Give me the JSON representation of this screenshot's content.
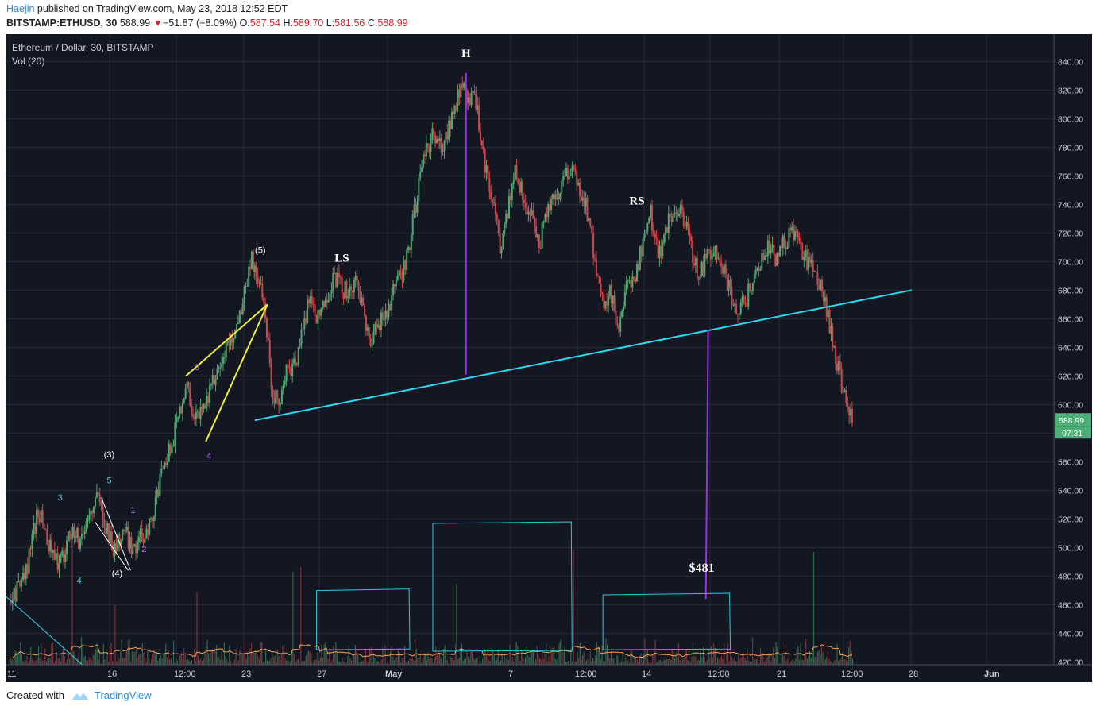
{
  "header": {
    "author": "Haejin",
    "published": " published on TradingView.com, May 23, 2018 12:52 EDT"
  },
  "quote": {
    "symbol": "BITSTAMP:ETHUSD, 30",
    "last": "588.99",
    "change": "−51.87 (−8.09%)",
    "o_label": "O:",
    "o": "587.54",
    "h_label": "H:",
    "h": "589.70",
    "l_label": "L:",
    "l": "581.56",
    "c_label": "C:",
    "c": "588.99"
  },
  "legend": {
    "title": "Ethereum / Dollar, 30, BITSTAMP",
    "volume": "Vol (20)"
  },
  "footer": {
    "created_with": "Created with",
    "brand": "TradingView",
    "logo_icon": "tradingview-cloud-icon"
  },
  "colors": {
    "background": "#131722",
    "grid": "#252a37",
    "up": "#4fa86f",
    "down": "#c9494f",
    "neckline": "#2cd9ee",
    "wedge": "#f3ee30",
    "target_line": "#9b30e8",
    "box": "#2cc6d8",
    "price_badge": "#4caf75"
  },
  "chart_data": {
    "type": "candlestick",
    "symbol": "ETHUSD",
    "interval": "30",
    "y_axis": {
      "range": [
        418,
        848
      ],
      "ticks": [
        420,
        440,
        460,
        480,
        500,
        520,
        540,
        560,
        580,
        600,
        620,
        640,
        660,
        680,
        700,
        720,
        740,
        760,
        780,
        800,
        820,
        840
      ]
    },
    "x_axis": {
      "ticks": [
        "11",
        "16",
        "12:00",
        "23",
        "27",
        "May",
        "7",
        "12:00",
        "14",
        "12:00",
        "21",
        "12:00",
        "28",
        "Jun"
      ]
    },
    "last_price": "588.99",
    "countdown": "07:31",
    "price_path": [
      {
        "t": 0,
        "p": 462
      },
      {
        "t": 2,
        "p": 480
      },
      {
        "t": 3.6,
        "p": 527
      },
      {
        "t": 5,
        "p": 503
      },
      {
        "t": 6.4,
        "p": 486
      },
      {
        "t": 7.6,
        "p": 512
      },
      {
        "t": 9,
        "p": 505
      },
      {
        "t": 10,
        "p": 522
      },
      {
        "t": 11.2,
        "p": 535
      },
      {
        "t": 12.2,
        "p": 516
      },
      {
        "t": 13.2,
        "p": 498
      },
      {
        "t": 14.4,
        "p": 512
      },
      {
        "t": 15.6,
        "p": 500
      },
      {
        "t": 17,
        "p": 510
      },
      {
        "t": 18,
        "p": 520
      },
      {
        "t": 19,
        "p": 545
      },
      {
        "t": 20.5,
        "p": 572
      },
      {
        "t": 21.5,
        "p": 598
      },
      {
        "t": 22.5,
        "p": 613
      },
      {
        "t": 23.5,
        "p": 588
      },
      {
        "t": 24.5,
        "p": 600
      },
      {
        "t": 25.5,
        "p": 612
      },
      {
        "t": 26.5,
        "p": 628
      },
      {
        "t": 27.5,
        "p": 640
      },
      {
        "t": 28.5,
        "p": 652
      },
      {
        "t": 29.5,
        "p": 672
      },
      {
        "t": 30.5,
        "p": 703
      },
      {
        "t": 31.5,
        "p": 688
      },
      {
        "t": 32.5,
        "p": 655
      },
      {
        "t": 33.2,
        "p": 610
      },
      {
        "t": 34,
        "p": 602
      },
      {
        "t": 35,
        "p": 622
      },
      {
        "t": 36,
        "p": 628
      },
      {
        "t": 37,
        "p": 650
      },
      {
        "t": 38,
        "p": 678
      },
      {
        "t": 39,
        "p": 660
      },
      {
        "t": 40,
        "p": 675
      },
      {
        "t": 41,
        "p": 690
      },
      {
        "t": 42,
        "p": 682
      },
      {
        "t": 43,
        "p": 678
      },
      {
        "t": 44,
        "p": 685
      },
      {
        "t": 45,
        "p": 660
      },
      {
        "t": 45.6,
        "p": 640
      },
      {
        "t": 46.5,
        "p": 655
      },
      {
        "t": 47.5,
        "p": 665
      },
      {
        "t": 48.5,
        "p": 678
      },
      {
        "t": 49.5,
        "p": 690
      },
      {
        "t": 50.5,
        "p": 710
      },
      {
        "t": 51.5,
        "p": 745
      },
      {
        "t": 52.5,
        "p": 775
      },
      {
        "t": 53.5,
        "p": 790
      },
      {
        "t": 54.5,
        "p": 778
      },
      {
        "t": 55.5,
        "p": 795
      },
      {
        "t": 56.5,
        "p": 812
      },
      {
        "t": 57.2,
        "p": 826
      },
      {
        "t": 57.8,
        "p": 808
      },
      {
        "t": 58.6,
        "p": 825
      },
      {
        "t": 59.4,
        "p": 795
      },
      {
        "t": 60.2,
        "p": 765
      },
      {
        "t": 61.2,
        "p": 742
      },
      {
        "t": 62,
        "p": 705
      },
      {
        "t": 63,
        "p": 735
      },
      {
        "t": 64,
        "p": 765
      },
      {
        "t": 65,
        "p": 742
      },
      {
        "t": 66,
        "p": 730
      },
      {
        "t": 67,
        "p": 712
      },
      {
        "t": 68,
        "p": 740
      },
      {
        "t": 69,
        "p": 745
      },
      {
        "t": 70,
        "p": 758
      },
      {
        "t": 71,
        "p": 762
      },
      {
        "t": 72,
        "p": 752
      },
      {
        "t": 73,
        "p": 735
      },
      {
        "t": 74,
        "p": 700
      },
      {
        "t": 75,
        "p": 670
      },
      {
        "t": 76,
        "p": 678
      },
      {
        "t": 77,
        "p": 648
      },
      {
        "t": 78,
        "p": 680
      },
      {
        "t": 79,
        "p": 690
      },
      {
        "t": 80,
        "p": 712
      },
      {
        "t": 81,
        "p": 735
      },
      {
        "t": 82,
        "p": 705
      },
      {
        "t": 83,
        "p": 722
      },
      {
        "t": 84,
        "p": 738
      },
      {
        "t": 85,
        "p": 732
      },
      {
        "t": 86,
        "p": 712
      },
      {
        "t": 87,
        "p": 690
      },
      {
        "t": 88,
        "p": 700
      },
      {
        "t": 89,
        "p": 712
      },
      {
        "t": 90,
        "p": 698
      },
      {
        "t": 91,
        "p": 682
      },
      {
        "t": 92,
        "p": 665
      },
      {
        "t": 93,
        "p": 672
      },
      {
        "t": 94,
        "p": 690
      },
      {
        "t": 95,
        "p": 700
      },
      {
        "t": 96,
        "p": 710
      },
      {
        "t": 97,
        "p": 702
      },
      {
        "t": 98,
        "p": 715
      },
      {
        "t": 99,
        "p": 720
      },
      {
        "t": 100,
        "p": 710
      },
      {
        "t": 101,
        "p": 698
      },
      {
        "t": 102,
        "p": 690
      },
      {
        "t": 103,
        "p": 672
      },
      {
        "t": 104,
        "p": 645
      },
      {
        "t": 105,
        "p": 620
      },
      {
        "t": 106,
        "p": 592
      },
      {
        "t": 106.5,
        "p": 588.99
      }
    ],
    "overlays": {
      "neckline": {
        "from": {
          "t": 31,
          "p": 589
        },
        "to": {
          "t": 114,
          "p": 680
        }
      },
      "head_line": {
        "from": {
          "t": 57.7,
          "p": 832
        },
        "to": {
          "t": 57.7,
          "p": 621
        }
      },
      "target_line": {
        "from": {
          "t": 88.3,
          "p": 652
        },
        "to": {
          "t": 88,
          "p": 464
        }
      },
      "wedge_upper": {
        "from": {
          "t": 22.3,
          "p": 620
        },
        "to": {
          "t": 32.6,
          "p": 670
        }
      },
      "wedge_lower": {
        "from": {
          "t": 24.8,
          "p": 574
        },
        "to": {
          "t": 32.6,
          "p": 670
        }
      },
      "small_wedge_upper": {
        "from": {
          "t": 10.8,
          "p": 518
        },
        "to": {
          "t": 15,
          "p": 484
        }
      },
      "small_wedge_lower": {
        "from": {
          "t": 11.6,
          "p": 535
        },
        "to": {
          "t": 15.3,
          "p": 484
        }
      },
      "trend_left": {
        "from": {
          "t": -0.5,
          "p": 466
        },
        "to": {
          "t": 9.2,
          "p": 418
        }
      }
    },
    "volume_boxes": [
      {
        "t1": 38.8,
        "t2": 50.5,
        "p1": 471,
        "p2": 429
      },
      {
        "t1": 53.5,
        "t2": 71,
        "p1": 518,
        "p2": 428
      },
      {
        "t1": 75,
        "t2": 91,
        "p1": 468,
        "p2": 429
      }
    ],
    "annotations": [
      {
        "text": "H",
        "t": 57.7,
        "p": 843,
        "color": "#ffffff",
        "size": 15,
        "bold": true
      },
      {
        "text": "LS",
        "t": 42,
        "p": 700,
        "color": "#ffffff",
        "size": 15,
        "bold": true
      },
      {
        "text": "RS",
        "t": 79.3,
        "p": 740,
        "color": "#ffffff",
        "size": 15,
        "bold": true
      },
      {
        "text": "$481",
        "t": 87.5,
        "p": 483,
        "color": "#ffffff",
        "size": 16,
        "bold": true
      },
      {
        "text": "(5)",
        "t": 31.7,
        "p": 706,
        "color": "#ffffff",
        "size": 11,
        "bold": false
      },
      {
        "text": "(3)",
        "t": 12.6,
        "p": 563,
        "color": "#ffffff",
        "size": 11,
        "bold": false
      },
      {
        "text": "(4)",
        "t": 13.6,
        "p": 480,
        "color": "#ffffff",
        "size": 11,
        "bold": false
      },
      {
        "text": "3",
        "t": 23.7,
        "p": 624,
        "color": "#b46ce8",
        "size": 11,
        "bold": false
      },
      {
        "text": "4",
        "t": 25.2,
        "p": 562,
        "color": "#b46ce8",
        "size": 11,
        "bold": false
      },
      {
        "text": "1",
        "t": 15.6,
        "p": 524,
        "color": "#b46ce8",
        "size": 11,
        "bold": false
      },
      {
        "text": "2",
        "t": 17,
        "p": 497,
        "color": "#b46ce8",
        "size": 11,
        "bold": false
      },
      {
        "text": "3",
        "t": 6.4,
        "p": 533,
        "color": "#33d6e8",
        "size": 11,
        "bold": false
      },
      {
        "text": "5",
        "t": 12.6,
        "p": 545,
        "color": "#33d6e8",
        "size": 11,
        "bold": false
      },
      {
        "text": "4",
        "t": 8.8,
        "p": 475,
        "color": "#33d6e8",
        "size": 11,
        "bold": false
      }
    ]
  }
}
